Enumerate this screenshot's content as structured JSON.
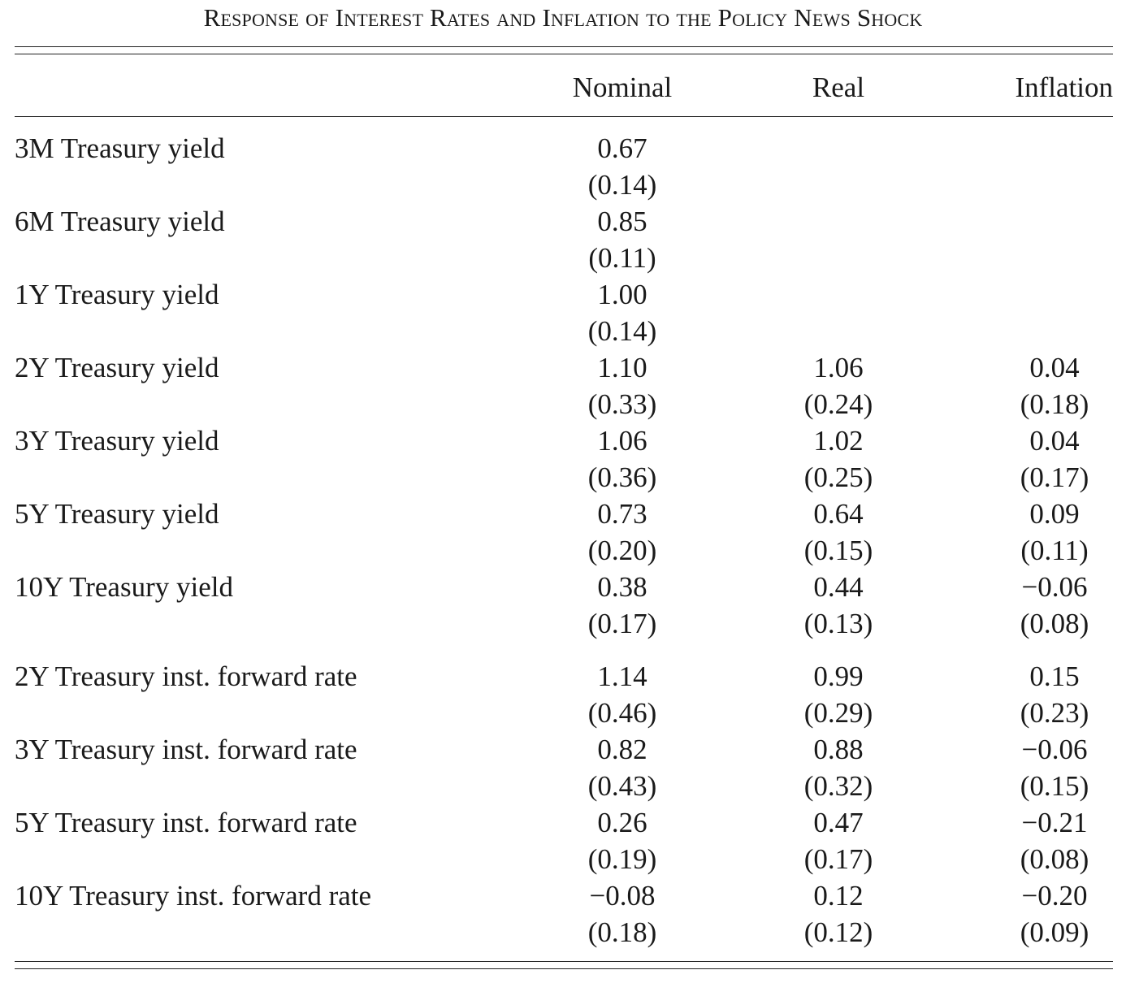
{
  "caption": "Response of Interest Rates and Inflation to the Policy News Shock",
  "columns": {
    "nominal": "Nominal",
    "real": "Real",
    "inflation": "Inflation"
  },
  "rows": [
    {
      "label": "3M Treasury yield",
      "nominal": "0.67",
      "nominal_se": "(0.14)",
      "real": "",
      "real_se": "",
      "inflation": "",
      "inflation_se": ""
    },
    {
      "label": "6M Treasury yield",
      "nominal": "0.85",
      "nominal_se": "(0.11)",
      "real": "",
      "real_se": "",
      "inflation": "",
      "inflation_se": ""
    },
    {
      "label": "1Y Treasury yield",
      "nominal": "1.00",
      "nominal_se": "(0.14)",
      "real": "",
      "real_se": "",
      "inflation": "",
      "inflation_se": ""
    },
    {
      "label": "2Y Treasury yield",
      "nominal": "1.10",
      "nominal_se": "(0.33)",
      "real": "1.06",
      "real_se": "(0.24)",
      "inflation": "0.04",
      "inflation_se": "(0.18)"
    },
    {
      "label": "3Y Treasury yield",
      "nominal": "1.06",
      "nominal_se": "(0.36)",
      "real": "1.02",
      "real_se": "(0.25)",
      "inflation": "0.04",
      "inflation_se": "(0.17)"
    },
    {
      "label": "5Y Treasury yield",
      "nominal": "0.73",
      "nominal_se": "(0.20)",
      "real": "0.64",
      "real_se": "(0.15)",
      "inflation": "0.09",
      "inflation_se": "(0.11)"
    },
    {
      "label": "10Y Treasury yield",
      "nominal": "0.38",
      "nominal_se": "(0.17)",
      "real": "0.44",
      "real_se": "(0.13)",
      "inflation": "−0.06",
      "inflation_se": "(0.08)"
    },
    {
      "label": "2Y Treasury inst. forward rate",
      "nominal": "1.14",
      "nominal_se": "(0.46)",
      "real": "0.99",
      "real_se": "(0.29)",
      "inflation": "0.15",
      "inflation_se": "(0.23)"
    },
    {
      "label": "3Y Treasury inst. forward rate",
      "nominal": "0.82",
      "nominal_se": "(0.43)",
      "real": "0.88",
      "real_se": "(0.32)",
      "inflation": "−0.06",
      "inflation_se": "(0.15)"
    },
    {
      "label": "5Y Treasury inst. forward rate",
      "nominal": "0.26",
      "nominal_se": "(0.19)",
      "real": "0.47",
      "real_se": "(0.17)",
      "inflation": "−0.21",
      "inflation_se": "(0.08)"
    },
    {
      "label": "10Y Treasury inst. forward rate",
      "nominal": "−0.08",
      "nominal_se": "(0.18)",
      "real": "0.12",
      "real_se": "(0.12)",
      "inflation": "−0.20",
      "inflation_se": "(0.09)"
    }
  ]
}
